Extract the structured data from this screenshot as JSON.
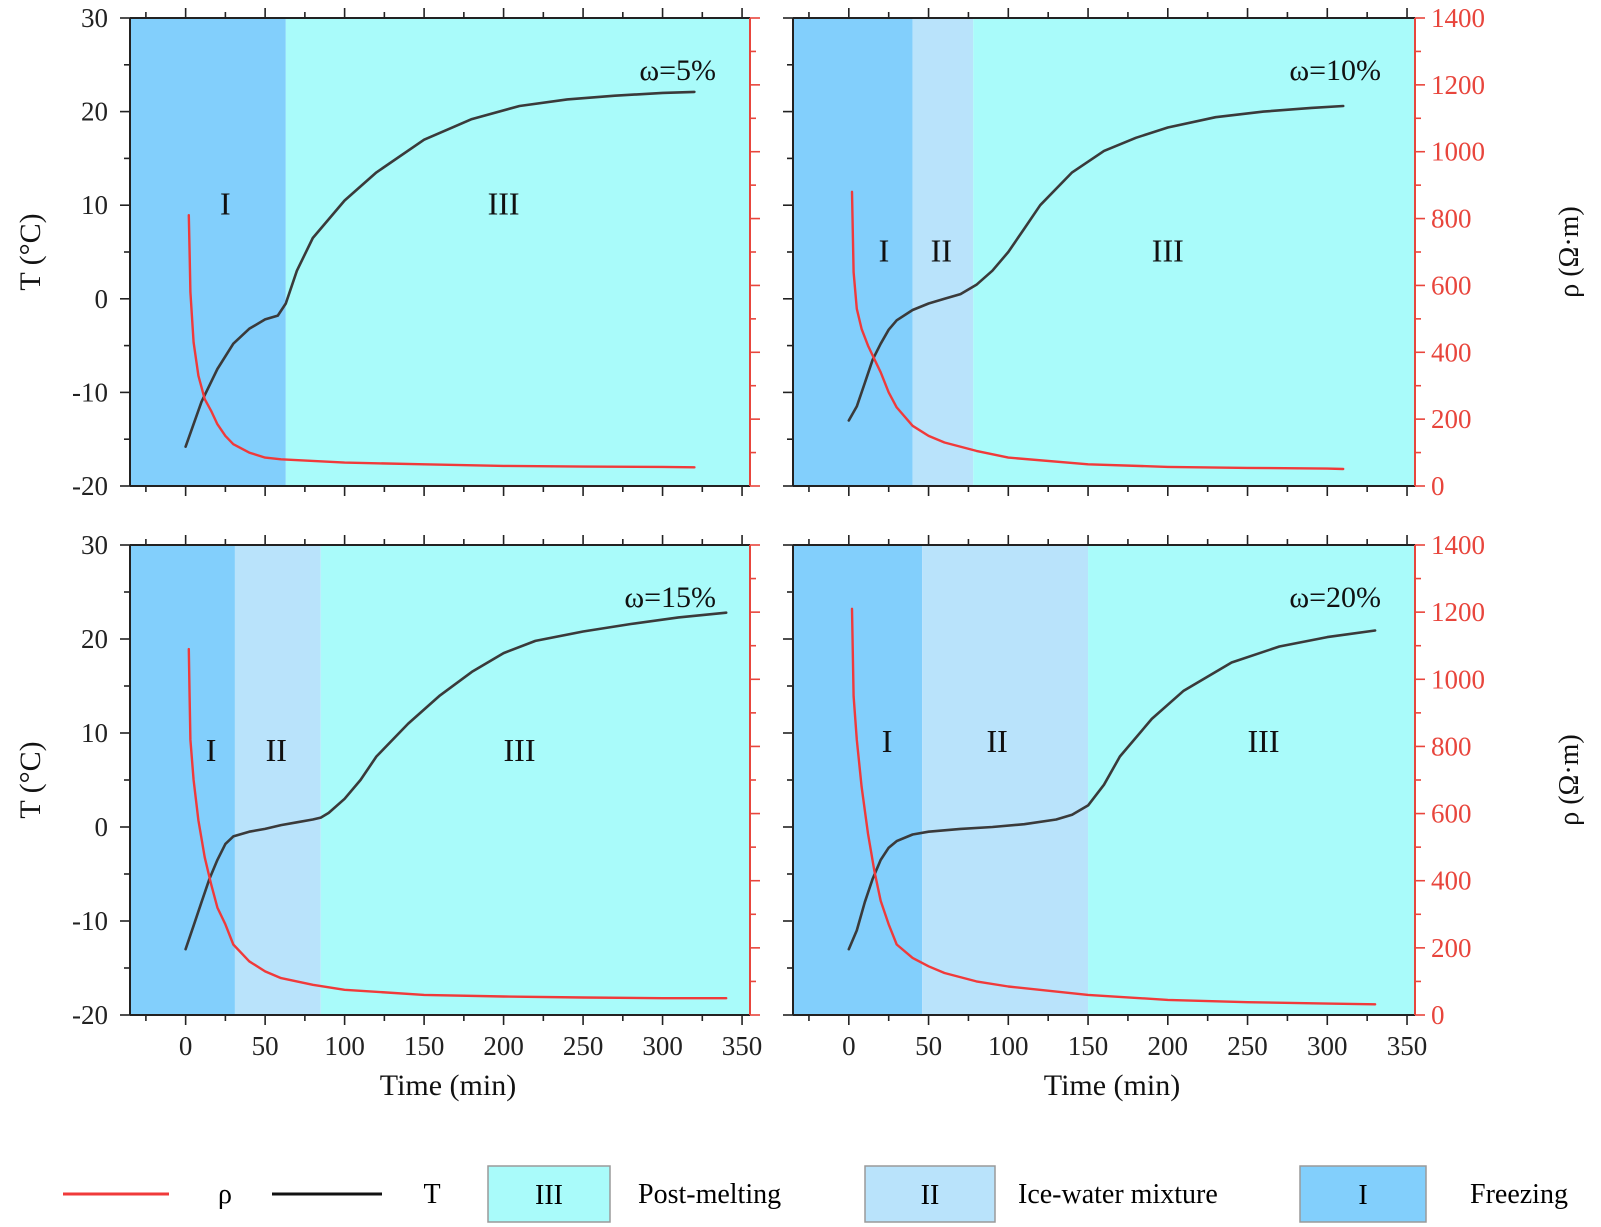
{
  "colors": {
    "freezing": "#82cffc",
    "ice_water": "#b9e3fb",
    "post_melting": "#a9fbfa",
    "rho_line": "#f03a3a",
    "temp_line": "#3a3a3a",
    "right_axis": "#e8453c",
    "axis": "#222222"
  },
  "chart_data": [
    {
      "type": "line",
      "panel": "top-left",
      "label": "ω=5%",
      "xlabel": "Time (min)",
      "ylabel_left": "T (°C)",
      "ylabel_right": "ρ (Ω·m)",
      "xlim": [
        -35,
        355
      ],
      "xticks": [
        0,
        50,
        100,
        150,
        200,
        250,
        300,
        350
      ],
      "ylim_left": [
        -20,
        30
      ],
      "yticks_left": [
        -20,
        -10,
        0,
        10,
        20,
        30
      ],
      "ylim_right": [
        0,
        1400
      ],
      "yticks_right": [
        0,
        200,
        400,
        600,
        800,
        1000,
        1200,
        1400
      ],
      "phases": [
        {
          "name": "I",
          "type": "freezing",
          "start": -35,
          "end": 63
        },
        {
          "name": "III",
          "type": "post_melting",
          "start": 63,
          "end": 355
        }
      ],
      "phase_labels": [
        {
          "text": "I",
          "x": 25,
          "y": 9
        },
        {
          "text": "III",
          "x": 200,
          "y": 9
        }
      ],
      "series": [
        {
          "name": "T",
          "axis": "left",
          "x": [
            0,
            10,
            20,
            30,
            40,
            50,
            58,
            63,
            70,
            80,
            100,
            120,
            150,
            180,
            210,
            240,
            270,
            300,
            320
          ],
          "values": [
            -15.8,
            -11,
            -7.5,
            -4.8,
            -3.2,
            -2.2,
            -1.8,
            -0.5,
            3,
            6.5,
            10.5,
            13.5,
            17,
            19.2,
            20.6,
            21.3,
            21.7,
            22,
            22.1
          ]
        },
        {
          "name": "ρ",
          "axis": "right",
          "x": [
            2,
            2.5,
            3,
            5,
            8,
            12,
            16,
            20,
            25,
            30,
            40,
            50,
            60,
            80,
            100,
            150,
            200,
            250,
            300,
            320
          ],
          "values": [
            810,
            700,
            580,
            430,
            330,
            260,
            225,
            185,
            150,
            125,
            100,
            85,
            80,
            75,
            70,
            65,
            60,
            58,
            57,
            56
          ]
        }
      ]
    },
    {
      "type": "line",
      "panel": "top-right",
      "label": "ω=10%",
      "xlabel": "Time (min)",
      "ylabel_left": "T (°C)",
      "ylabel_right": "ρ (Ω·m)",
      "xlim": [
        -35,
        355
      ],
      "xticks": [
        0,
        50,
        100,
        150,
        200,
        250,
        300,
        350
      ],
      "ylim_left": [
        -20,
        30
      ],
      "yticks_left": [
        -20,
        -10,
        0,
        10,
        20,
        30
      ],
      "ylim_right": [
        0,
        1400
      ],
      "yticks_right": [
        0,
        200,
        400,
        600,
        800,
        1000,
        1200,
        1400
      ],
      "phases": [
        {
          "name": "I",
          "type": "freezing",
          "start": -35,
          "end": 40
        },
        {
          "name": "II",
          "type": "ice_water",
          "start": 40,
          "end": 78
        },
        {
          "name": "III",
          "type": "post_melting",
          "start": 78,
          "end": 355
        }
      ],
      "phase_labels": [
        {
          "text": "I",
          "x": 22,
          "y": 4
        },
        {
          "text": "II",
          "x": 58,
          "y": 4
        },
        {
          "text": "III",
          "x": 200,
          "y": 4
        }
      ],
      "series": [
        {
          "name": "T",
          "axis": "left",
          "x": [
            0,
            5,
            10,
            15,
            20,
            25,
            30,
            40,
            50,
            60,
            70,
            80,
            90,
            100,
            110,
            120,
            140,
            160,
            180,
            200,
            230,
            260,
            290,
            310
          ],
          "values": [
            -13,
            -11.5,
            -9,
            -6.5,
            -4.8,
            -3.3,
            -2.3,
            -1.2,
            -0.5,
            0,
            0.5,
            1.5,
            3,
            5,
            7.5,
            10,
            13.5,
            15.8,
            17.2,
            18.3,
            19.4,
            20,
            20.4,
            20.6
          ]
        },
        {
          "name": "ρ",
          "axis": "right",
          "x": [
            2,
            2.5,
            3,
            5,
            8,
            12,
            16,
            20,
            25,
            30,
            40,
            50,
            60,
            80,
            100,
            150,
            200,
            250,
            300,
            310
          ],
          "values": [
            880,
            760,
            640,
            530,
            470,
            420,
            380,
            340,
            280,
            235,
            180,
            150,
            130,
            105,
            85,
            65,
            57,
            54,
            52,
            51
          ]
        }
      ]
    },
    {
      "type": "line",
      "panel": "bottom-left",
      "label": "ω=15%",
      "xlabel": "Time (min)",
      "ylabel_left": "T (°C)",
      "ylabel_right": "ρ (Ω·m)",
      "xlim": [
        -35,
        355
      ],
      "xticks": [
        0,
        50,
        100,
        150,
        200,
        250,
        300,
        350
      ],
      "ylim_left": [
        -20,
        30
      ],
      "yticks_left": [
        -20,
        -10,
        0,
        10,
        20,
        30
      ],
      "ylim_right": [
        0,
        1400
      ],
      "yticks_right": [
        0,
        200,
        400,
        600,
        800,
        1000,
        1200,
        1400
      ],
      "phases": [
        {
          "name": "I",
          "type": "freezing",
          "start": -35,
          "end": 31
        },
        {
          "name": "II",
          "type": "ice_water",
          "start": 31,
          "end": 85
        },
        {
          "name": "III",
          "type": "post_melting",
          "start": 85,
          "end": 355
        }
      ],
      "phase_labels": [
        {
          "text": "I",
          "x": 16,
          "y": 7
        },
        {
          "text": "II",
          "x": 57,
          "y": 7
        },
        {
          "text": "III",
          "x": 210,
          "y": 7
        }
      ],
      "series": [
        {
          "name": "T",
          "axis": "left",
          "x": [
            0,
            5,
            10,
            15,
            20,
            25,
            30,
            40,
            50,
            60,
            70,
            80,
            85,
            90,
            100,
            110,
            120,
            140,
            160,
            180,
            200,
            220,
            250,
            280,
            310,
            340
          ],
          "values": [
            -13,
            -10.5,
            -8,
            -5.5,
            -3.5,
            -1.8,
            -1,
            -0.5,
            -0.2,
            0.2,
            0.5,
            0.8,
            1,
            1.5,
            3,
            5,
            7.5,
            11,
            14,
            16.5,
            18.5,
            19.8,
            20.8,
            21.6,
            22.3,
            22.8
          ]
        },
        {
          "name": "ρ",
          "axis": "right",
          "x": [
            2,
            2.5,
            3,
            5,
            8,
            12,
            16,
            20,
            25,
            30,
            40,
            50,
            60,
            80,
            100,
            150,
            200,
            250,
            300,
            340
          ],
          "values": [
            1090,
            950,
            820,
            700,
            580,
            470,
            390,
            320,
            270,
            210,
            160,
            130,
            110,
            90,
            75,
            60,
            55,
            52,
            50,
            50
          ]
        }
      ]
    },
    {
      "type": "line",
      "panel": "bottom-right",
      "label": "ω=20%",
      "xlabel": "Time (min)",
      "ylabel_left": "T (°C)",
      "ylabel_right": "ρ (Ω·m)",
      "xlim": [
        -35,
        355
      ],
      "xticks": [
        0,
        50,
        100,
        150,
        200,
        250,
        300,
        350
      ],
      "ylim_left": [
        -20,
        30
      ],
      "yticks_left": [
        -20,
        -10,
        0,
        10,
        20,
        30
      ],
      "ylim_right": [
        0,
        1400
      ],
      "yticks_right": [
        0,
        200,
        400,
        600,
        800,
        1000,
        1200,
        1400
      ],
      "phases": [
        {
          "name": "I",
          "type": "freezing",
          "start": -35,
          "end": 46
        },
        {
          "name": "II",
          "type": "ice_water",
          "start": 46,
          "end": 150
        },
        {
          "name": "III",
          "type": "post_melting",
          "start": 150,
          "end": 355
        }
      ],
      "phase_labels": [
        {
          "text": "I",
          "x": 24,
          "y": 8
        },
        {
          "text": "II",
          "x": 93,
          "y": 8
        },
        {
          "text": "III",
          "x": 260,
          "y": 8
        }
      ],
      "series": [
        {
          "name": "T",
          "axis": "left",
          "x": [
            0,
            5,
            10,
            15,
            20,
            25,
            30,
            40,
            50,
            70,
            90,
            110,
            130,
            140,
            150,
            160,
            170,
            190,
            210,
            240,
            270,
            300,
            330
          ],
          "values": [
            -13,
            -11,
            -8,
            -5.5,
            -3.5,
            -2.2,
            -1.5,
            -0.8,
            -0.5,
            -0.2,
            0,
            0.3,
            0.8,
            1.3,
            2.3,
            4.5,
            7.5,
            11.5,
            14.5,
            17.5,
            19.2,
            20.2,
            20.9
          ]
        },
        {
          "name": "ρ",
          "axis": "right",
          "x": [
            2,
            2.5,
            3,
            5,
            8,
            12,
            16,
            20,
            25,
            30,
            40,
            50,
            60,
            80,
            100,
            150,
            200,
            250,
            300,
            330
          ],
          "values": [
            1210,
            1080,
            950,
            820,
            680,
            540,
            430,
            340,
            270,
            210,
            170,
            145,
            125,
            100,
            85,
            60,
            45,
            38,
            34,
            32
          ]
        }
      ]
    }
  ],
  "legend": {
    "rho_label": "ρ",
    "temp_label": "T",
    "post_melting_box": "III",
    "post_melting_label": "Post-melting",
    "ice_water_box": "II",
    "ice_water_label": "Ice-water mixture",
    "freezing_box": "I",
    "freezing_label": "Freezing"
  }
}
